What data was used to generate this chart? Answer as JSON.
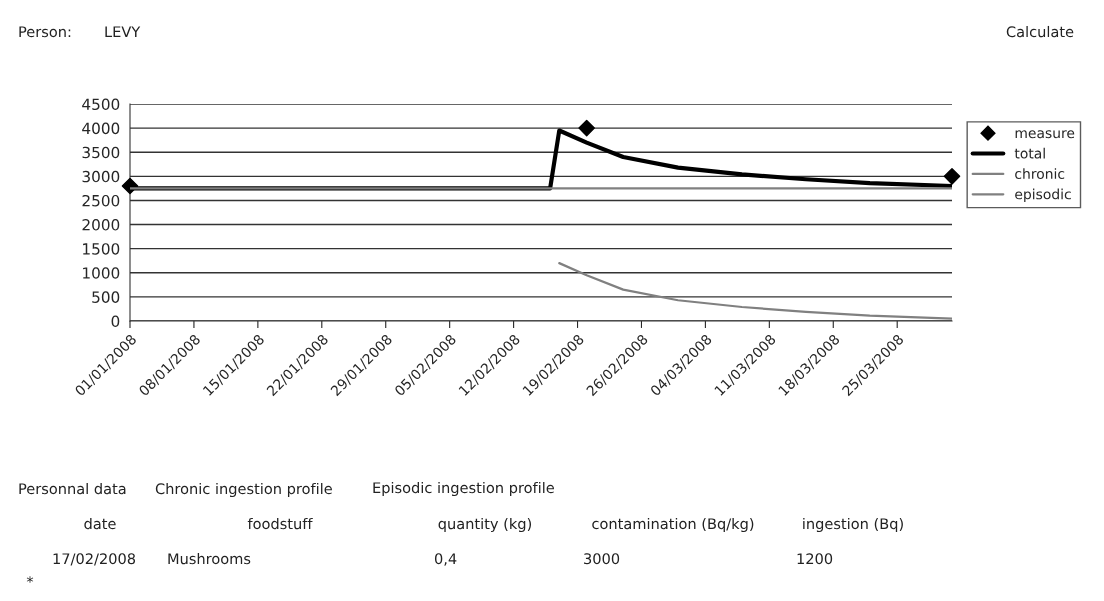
{
  "chart_data": {
    "type": "line",
    "series": [
      {
        "name": "measure",
        "type": "scatter",
        "color": "#000000",
        "marker": "diamond",
        "x": [
          "2008-01-01",
          "2008-02-20",
          "2008-03-31"
        ],
        "values": [
          2800,
          4000,
          3000
        ]
      },
      {
        "name": "total",
        "color": "#000000",
        "x": [
          "2008-01-01",
          "2008-02-16",
          "2008-02-17",
          "2008-02-20",
          "2008-02-24",
          "2008-03-01",
          "2008-03-08",
          "2008-03-15",
          "2008-03-22",
          "2008-03-31"
        ],
        "values": [
          2750,
          2750,
          3950,
          3700,
          3400,
          3180,
          3040,
          2940,
          2860,
          2800
        ]
      },
      {
        "name": "chronic",
        "color": "#808080",
        "x": [
          "2008-01-01",
          "2008-03-31"
        ],
        "values": [
          2750,
          2750
        ]
      },
      {
        "name": "episodic",
        "color": "#808080",
        "x": [
          "2008-02-17",
          "2008-02-20",
          "2008-02-24",
          "2008-03-01",
          "2008-03-08",
          "2008-03-15",
          "2008-03-22",
          "2008-03-31"
        ],
        "values": [
          1200,
          950,
          650,
          430,
          290,
          190,
          110,
          50
        ]
      }
    ],
    "xlim": [
      "2008-01-01",
      "2008-03-31"
    ],
    "xticks": [
      {
        "value": "2008-01-01",
        "label": "01/01/2008"
      },
      {
        "value": "2008-01-08",
        "label": "08/01/2008"
      },
      {
        "value": "2008-01-15",
        "label": "15/01/2008"
      },
      {
        "value": "2008-01-22",
        "label": "22/01/2008"
      },
      {
        "value": "2008-01-29",
        "label": "29/01/2008"
      },
      {
        "value": "2008-02-05",
        "label": "05/02/2008"
      },
      {
        "value": "2008-02-12",
        "label": "12/02/2008"
      },
      {
        "value": "2008-02-19",
        "label": "19/02/2008"
      },
      {
        "value": "2008-02-26",
        "label": "26/02/2008"
      },
      {
        "value": "2008-03-04",
        "label": "04/03/2008"
      },
      {
        "value": "2008-03-11",
        "label": "11/03/2008"
      },
      {
        "value": "2008-03-18",
        "label": "18/03/2008"
      },
      {
        "value": "2008-03-25",
        "label": "25/03/2008"
      }
    ],
    "ylim": [
      0,
      4500
    ],
    "yticks": [
      0,
      500,
      1000,
      1500,
      2000,
      2500,
      3000,
      3500,
      4000,
      4500
    ],
    "grid": "y",
    "legend": "right",
    "marker": "none",
    "line_style": "solid",
    "annotations": [
      "Person:",
      "LEVY",
      "Calculate",
      "Personnal data",
      "Chronic ingestion profile",
      "Episodic ingestion profile",
      "date",
      "foodstuff",
      "quantity (kg)",
      "contamination (Bq/kg)",
      "ingestion (Bq)",
      "17/02/2008",
      "Mushrooms",
      "0,4",
      "3000",
      "1200",
      "*"
    ]
  }
}
